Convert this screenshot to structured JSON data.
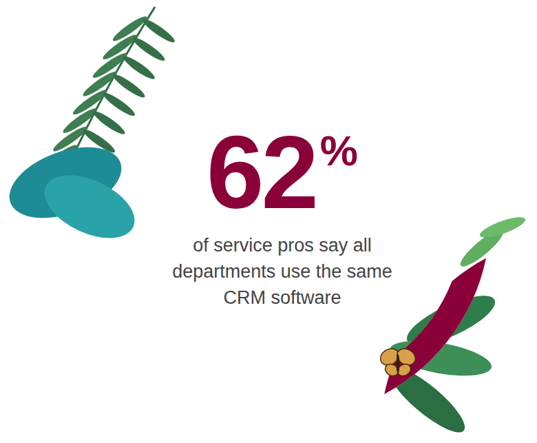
{
  "chart_data": {
    "type": "donut",
    "values": [
      62
    ],
    "value_labels": [
      "62%"
    ],
    "data_labels": true,
    "ylim": [
      0,
      100
    ],
    "tick_labels": false,
    "color": "#8a0039",
    "annotation": "of service pros say all departments use the same CRM software"
  }
}
